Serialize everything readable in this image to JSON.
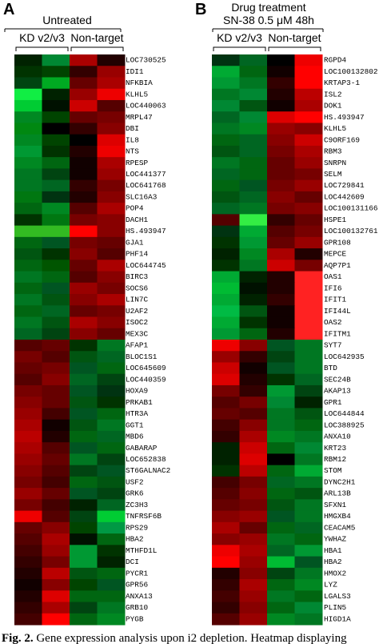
{
  "panels": [
    {
      "letter": "A",
      "title": [
        "Untreated"
      ],
      "groups": [
        "KD v2/v3",
        "Non-target"
      ],
      "genes": [
        "LOC730525",
        "IDI1",
        "NFKBIA",
        "KLHL5",
        "LOC440063",
        "MRPL47",
        "DBI",
        "IL8",
        "NTS",
        "RPESP",
        "LOC441377",
        "LOC641768",
        "SLC16A3",
        "POP4",
        "DACH1",
        "HS.493947",
        "GJA1",
        "PHF14",
        "LOC644745",
        "BIRC3",
        "SOCS6",
        "LIN7C",
        "U2AF2",
        "ISOC2",
        "MEX3C",
        "AFAP1",
        "BLOC1S1",
        "LOC645609",
        "LOC440359",
        "HOXA9",
        "PRKAB1",
        "HTR3A",
        "GGT1",
        "MBD6",
        "GABARAP",
        "LOC652838",
        "ST6GALNAC2",
        "USF2",
        "GRK6",
        "ZC3H3",
        "TNFRSF6B",
        "RPS29",
        "HBA2",
        "MTHFD1L",
        "DCI",
        "PYCR1",
        "GPR56",
        "ANXA13",
        "GRB10",
        "PYGB"
      ],
      "colors": [
        [
          "#020",
          "#083",
          "#a00",
          "#200"
        ],
        [
          "#030",
          "#040",
          "#300",
          "#900"
        ],
        [
          "#041",
          "#0a2",
          "#600",
          "#a00"
        ],
        [
          "#1e4",
          "#020",
          "#900",
          "#e00"
        ],
        [
          "#0c3",
          "#010",
          "#c00",
          "#500"
        ],
        [
          "#082",
          "#040",
          "#600",
          "#700"
        ],
        [
          "#081",
          "#000",
          "#300",
          "#800"
        ],
        [
          "#082",
          "#040",
          "#000",
          "#d00"
        ],
        [
          "#093",
          "#030",
          "#200",
          "#e00"
        ],
        [
          "#082",
          "#061",
          "#100",
          "#a00"
        ],
        [
          "#072",
          "#041",
          "#100",
          "#900"
        ],
        [
          "#072",
          "#062",
          "#300",
          "#700"
        ],
        [
          "#071",
          "#031",
          "#200",
          "#800"
        ],
        [
          "#061",
          "#082",
          "#500",
          "#a00"
        ],
        [
          "#030",
          "#071",
          "#700",
          "#800"
        ],
        [
          "#3b2",
          "#3b2",
          "#f00",
          "#800"
        ],
        [
          "#061",
          "#052",
          "#700",
          "#600"
        ],
        [
          "#051",
          "#030",
          "#800",
          "#500"
        ],
        [
          "#061",
          "#050",
          "#600",
          "#a00"
        ],
        [
          "#072",
          "#061",
          "#500",
          "#800"
        ],
        [
          "#061",
          "#052",
          "#900",
          "#700"
        ],
        [
          "#072",
          "#051",
          "#800",
          "#a00"
        ],
        [
          "#061",
          "#062",
          "#600",
          "#700"
        ],
        [
          "#072",
          "#051",
          "#a00",
          "#800"
        ],
        [
          "#062",
          "#041",
          "#800",
          "#600"
        ],
        [
          "#500",
          "#600",
          "#030",
          "#072"
        ],
        [
          "#700",
          "#500",
          "#051",
          "#062"
        ],
        [
          "#600",
          "#700",
          "#052",
          "#061"
        ],
        [
          "#500",
          "#800",
          "#062",
          "#041"
        ],
        [
          "#700",
          "#600",
          "#052",
          "#031"
        ],
        [
          "#800",
          "#600",
          "#051",
          "#030"
        ],
        [
          "#900",
          "#400",
          "#052",
          "#061"
        ],
        [
          "#a00",
          "#100",
          "#051",
          "#072"
        ],
        [
          "#b00",
          "#200",
          "#061",
          "#062"
        ],
        [
          "#a00",
          "#500",
          "#052",
          "#061"
        ],
        [
          "#900",
          "#600",
          "#072",
          "#041"
        ],
        [
          "#800",
          "#500",
          "#041",
          "#052"
        ],
        [
          "#700",
          "#400",
          "#061",
          "#051"
        ],
        [
          "#900",
          "#600",
          "#052",
          "#041"
        ],
        [
          "#700",
          "#400",
          "#020",
          "#062"
        ],
        [
          "#e00",
          "#500",
          "#041",
          "#0c3"
        ],
        [
          "#600",
          "#800",
          "#040",
          "#094"
        ],
        [
          "#500",
          "#a00",
          "#010",
          "#061"
        ],
        [
          "#400",
          "#900",
          "#093",
          "#030"
        ],
        [
          "#300",
          "#700",
          "#093",
          "#020"
        ],
        [
          "#200",
          "#b00",
          "#051",
          "#061"
        ],
        [
          "#100",
          "#800",
          "#040",
          "#052"
        ],
        [
          "#200",
          "#d00",
          "#061",
          "#061"
        ],
        [
          "#300",
          "#a00",
          "#041",
          "#072"
        ],
        [
          "#400",
          "#f00",
          "#061",
          "#082"
        ]
      ]
    },
    {
      "letter": "B",
      "title": [
        "Drug treatment",
        "SN-38 0.5 μM 48h"
      ],
      "groups": [
        "KD v2/v3",
        "Non-target"
      ],
      "genes": [
        "RGPD4",
        "LOC100132802",
        "KRTAP3-1",
        "ISL2",
        "DOK1",
        "HS.493947",
        "KLHL5",
        "C9ORF169",
        "RBM3",
        "SNRPN",
        "SELM",
        "LOC729841",
        "LOC442609",
        "LOC100131166",
        "HSPE1",
        "LOC100132761",
        "GPR108",
        "MEPCE",
        "AQP7P1",
        "OAS1",
        "IFI6",
        "IFIT1",
        "IFI44L",
        "OAS2",
        "IFITM1",
        "SYT7",
        "LOC642935",
        "BTD",
        "SEC24B",
        "AKAP13",
        "GPR1",
        "LOC644844",
        "LOC388925",
        "ANXA10",
        "KRT23",
        "RBM12",
        "STOM",
        "DYNC2H1",
        "ARL13B",
        "SFXN1",
        "HMGXB4",
        "CEACAM5",
        "YWHAZ",
        "HBA1",
        "HBA2",
        "HMOX2",
        "LYZ",
        "LGALS3",
        "PLIN5",
        "HIGD1A"
      ],
      "colors": [
        [
          "#031",
          "#062",
          "#000",
          "#e00"
        ],
        [
          "#0a3",
          "#061",
          "#100",
          "#f00"
        ],
        [
          "#093",
          "#072",
          "#300",
          "#f00"
        ],
        [
          "#072",
          "#083",
          "#200",
          "#b00"
        ],
        [
          "#083",
          "#051",
          "#100",
          "#a00"
        ],
        [
          "#062",
          "#083",
          "#d00",
          "#f00"
        ],
        [
          "#072",
          "#082",
          "#900",
          "#800"
        ],
        [
          "#061",
          "#062",
          "#800",
          "#c00"
        ],
        [
          "#051",
          "#062",
          "#700",
          "#a00"
        ],
        [
          "#072",
          "#061",
          "#600",
          "#900"
        ],
        [
          "#062",
          "#061",
          "#600",
          "#700"
        ],
        [
          "#061",
          "#052",
          "#700",
          "#900"
        ],
        [
          "#051",
          "#062",
          "#800",
          "#600"
        ],
        [
          "#062",
          "#072",
          "#700",
          "#800"
        ],
        [
          "#500",
          "#3e4",
          "#300",
          "#600"
        ],
        [
          "#031",
          "#0a3",
          "#500",
          "#700"
        ],
        [
          "#030",
          "#093",
          "#600",
          "#900"
        ],
        [
          "#020",
          "#082",
          "#a00",
          "#200"
        ],
        [
          "#030",
          "#072",
          "#c00",
          "#700"
        ],
        [
          "#0a3",
          "#020",
          "#200",
          "#f22"
        ],
        [
          "#0b3",
          "#010",
          "#200",
          "#f22"
        ],
        [
          "#0a3",
          "#020",
          "#300",
          "#f22"
        ],
        [
          "#0b4",
          "#051",
          "#100",
          "#f22"
        ],
        [
          "#0a3",
          "#030",
          "#100",
          "#f22"
        ],
        [
          "#093",
          "#061",
          "#200",
          "#f22"
        ],
        [
          "#e00",
          "#800",
          "#052",
          "#072"
        ],
        [
          "#900",
          "#300",
          "#041",
          "#072"
        ],
        [
          "#c00",
          "#100",
          "#052",
          "#072"
        ],
        [
          "#d00",
          "#200",
          "#030",
          "#062"
        ],
        [
          "#700",
          "#300",
          "#093",
          "#041"
        ],
        [
          "#500",
          "#700",
          "#083",
          "#020"
        ],
        [
          "#600",
          "#500",
          "#072",
          "#051"
        ],
        [
          "#400",
          "#800",
          "#072",
          "#061"
        ],
        [
          "#300",
          "#a00",
          "#082",
          "#072"
        ],
        [
          "#020",
          "#c00",
          "#061",
          "#083"
        ],
        [
          "#020",
          "#d00",
          "#000",
          "#072"
        ],
        [
          "#030",
          "#b00",
          "#061",
          "#0a3"
        ],
        [
          "#400",
          "#700",
          "#062",
          "#072"
        ],
        [
          "#500",
          "#800",
          "#061",
          "#051"
        ],
        [
          "#600",
          "#700",
          "#051",
          "#072"
        ],
        [
          "#800",
          "#900",
          "#052",
          "#072"
        ],
        [
          "#a00",
          "#600",
          "#061",
          "#062"
        ],
        [
          "#800",
          "#900",
          "#072",
          "#061"
        ],
        [
          "#e00",
          "#a00",
          "#062",
          "#093"
        ],
        [
          "#f00",
          "#900",
          "#0b3",
          "#052"
        ],
        [
          "#200",
          "#800",
          "#041",
          "#072"
        ],
        [
          "#300",
          "#a00",
          "#061",
          "#082"
        ],
        [
          "#400",
          "#900",
          "#072",
          "#061"
        ],
        [
          "#300",
          "#800",
          "#061",
          "#083"
        ],
        [
          "#500",
          "#900",
          "#082",
          "#072"
        ]
      ]
    }
  ],
  "caption": {
    "label": "Fig. 2.",
    "text": "Gene expression analysis upon i2 depletion. Heatmap displaying"
  }
}
